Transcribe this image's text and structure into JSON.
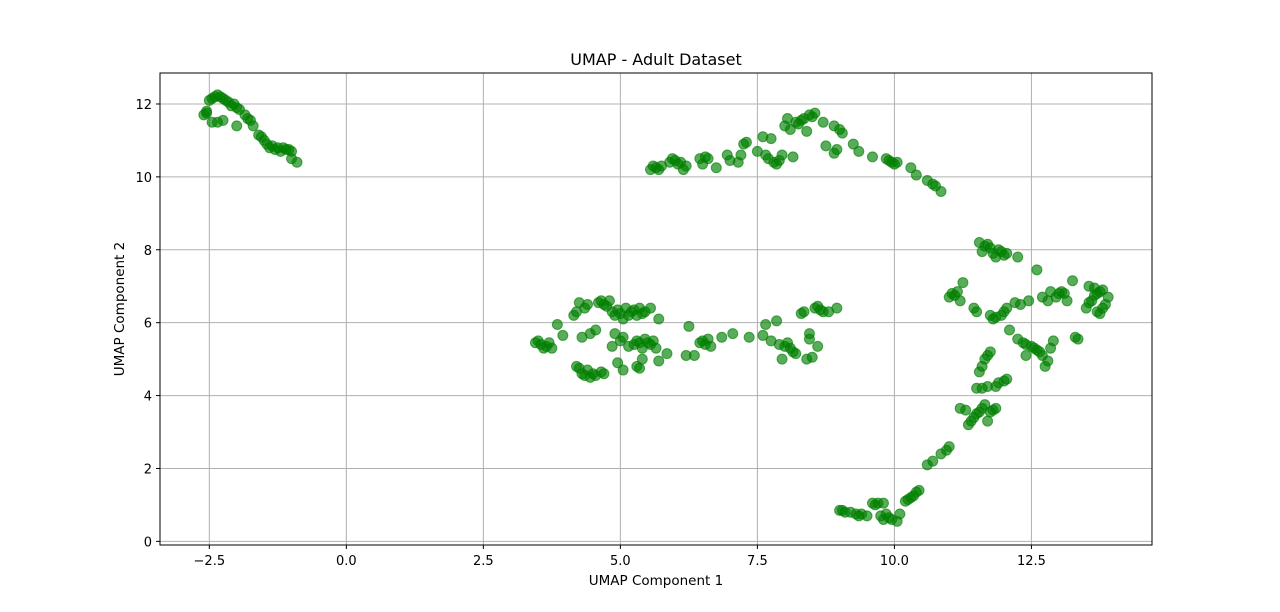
{
  "chart_data": {
    "type": "scatter",
    "title": "UMAP - Adult Dataset",
    "xlabel": "UMAP Component 1",
    "ylabel": "UMAP Component 2",
    "xlim": [
      -3.4,
      14.7
    ],
    "ylim": [
      -0.1,
      12.85
    ],
    "xticks": [
      -2.5,
      0.0,
      2.5,
      5.0,
      7.5,
      10.0,
      12.5
    ],
    "xtick_labels": [
      "−2.5",
      "0.0",
      "2.5",
      "5.0",
      "7.5",
      "10.0",
      "12.5"
    ],
    "yticks": [
      0,
      2,
      4,
      6,
      8,
      10,
      12
    ],
    "ytick_labels": [
      "0",
      "2",
      "4",
      "6",
      "8",
      "10",
      "12"
    ],
    "grid": true,
    "marker_color": "#008000",
    "marker_alpha": 0.65,
    "points": [
      [
        -2.6,
        11.7
      ],
      [
        -2.55,
        11.75
      ],
      [
        -2.5,
        12.1
      ],
      [
        -2.45,
        12.15
      ],
      [
        -2.4,
        12.2
      ],
      [
        -2.35,
        12.25
      ],
      [
        -2.3,
        12.2
      ],
      [
        -2.25,
        12.15
      ],
      [
        -2.2,
        12.1
      ],
      [
        -2.15,
        12.05
      ],
      [
        -2.1,
        11.95
      ],
      [
        -2.05,
        12.0
      ],
      [
        -2.0,
        11.9
      ],
      [
        -1.95,
        11.85
      ],
      [
        -1.85,
        11.7
      ],
      [
        -1.8,
        11.6
      ],
      [
        -1.75,
        11.55
      ],
      [
        -1.7,
        11.4
      ],
      [
        -1.6,
        11.15
      ],
      [
        -1.55,
        11.1
      ],
      [
        -1.5,
        11.0
      ],
      [
        -1.45,
        10.9
      ],
      [
        -1.4,
        10.8
      ],
      [
        -1.35,
        10.85
      ],
      [
        -1.3,
        10.75
      ],
      [
        -1.25,
        10.8
      ],
      [
        -1.2,
        10.7
      ],
      [
        -1.15,
        10.8
      ],
      [
        -1.1,
        10.75
      ],
      [
        -1.05,
        10.75
      ],
      [
        -1.0,
        10.7
      ],
      [
        -1.0,
        10.5
      ],
      [
        -0.9,
        10.4
      ],
      [
        -2.45,
        11.5
      ],
      [
        -2.35,
        11.5
      ],
      [
        -2.25,
        11.55
      ],
      [
        -2.0,
        11.4
      ],
      [
        -2.55,
        11.8
      ],
      [
        5.55,
        10.2
      ],
      [
        5.6,
        10.3
      ],
      [
        5.65,
        10.25
      ],
      [
        5.7,
        10.2
      ],
      [
        5.75,
        10.3
      ],
      [
        5.9,
        10.4
      ],
      [
        5.95,
        10.5
      ],
      [
        6.0,
        10.45
      ],
      [
        6.05,
        10.35
      ],
      [
        6.1,
        10.4
      ],
      [
        6.15,
        10.2
      ],
      [
        6.2,
        10.3
      ],
      [
        6.45,
        10.5
      ],
      [
        6.5,
        10.35
      ],
      [
        6.55,
        10.55
      ],
      [
        6.6,
        10.5
      ],
      [
        6.75,
        10.25
      ],
      [
        6.95,
        10.6
      ],
      [
        7.0,
        10.45
      ],
      [
        7.15,
        10.4
      ],
      [
        7.2,
        10.6
      ],
      [
        7.25,
        10.9
      ],
      [
        7.3,
        10.95
      ],
      [
        7.5,
        10.7
      ],
      [
        7.6,
        11.1
      ],
      [
        7.65,
        10.6
      ],
      [
        7.7,
        10.5
      ],
      [
        7.75,
        11.05
      ],
      [
        7.8,
        10.4
      ],
      [
        7.85,
        10.35
      ],
      [
        7.9,
        10.45
      ],
      [
        7.95,
        10.6
      ],
      [
        8.0,
        11.4
      ],
      [
        8.05,
        11.6
      ],
      [
        8.1,
        11.3
      ],
      [
        8.15,
        10.55
      ],
      [
        8.2,
        11.5
      ],
      [
        8.25,
        11.45
      ],
      [
        8.3,
        11.55
      ],
      [
        8.35,
        11.6
      ],
      [
        8.4,
        11.25
      ],
      [
        8.45,
        11.7
      ],
      [
        8.5,
        11.65
      ],
      [
        8.55,
        11.75
      ],
      [
        8.7,
        11.5
      ],
      [
        8.75,
        10.85
      ],
      [
        8.9,
        11.4
      ],
      [
        8.95,
        10.75
      ],
      [
        9.0,
        11.3
      ],
      [
        9.05,
        11.2
      ],
      [
        9.25,
        10.9
      ],
      [
        9.35,
        10.7
      ],
      [
        9.6,
        10.55
      ],
      [
        9.85,
        10.5
      ],
      [
        9.9,
        10.45
      ],
      [
        9.95,
        10.4
      ],
      [
        10.0,
        10.35
      ],
      [
        10.05,
        10.4
      ],
      [
        10.3,
        10.25
      ],
      [
        10.4,
        10.05
      ],
      [
        10.6,
        9.9
      ],
      [
        10.7,
        9.8
      ],
      [
        10.75,
        9.75
      ],
      [
        10.85,
        9.6
      ],
      [
        8.9,
        10.65
      ],
      [
        3.45,
        5.45
      ],
      [
        3.5,
        5.5
      ],
      [
        3.55,
        5.4
      ],
      [
        3.6,
        5.3
      ],
      [
        3.65,
        5.35
      ],
      [
        3.7,
        5.45
      ],
      [
        3.75,
        5.3
      ],
      [
        3.85,
        5.95
      ],
      [
        3.95,
        5.65
      ],
      [
        4.15,
        6.2
      ],
      [
        4.2,
        6.3
      ],
      [
        4.25,
        6.55
      ],
      [
        4.3,
        5.6
      ],
      [
        4.35,
        6.4
      ],
      [
        4.4,
        6.5
      ],
      [
        4.45,
        5.7
      ],
      [
        4.55,
        5.8
      ],
      [
        4.6,
        6.55
      ],
      [
        4.65,
        6.6
      ],
      [
        4.7,
        6.5
      ],
      [
        4.75,
        6.45
      ],
      [
        4.8,
        6.6
      ],
      [
        4.85,
        6.3
      ],
      [
        4.9,
        6.2
      ],
      [
        4.95,
        6.35
      ],
      [
        5.0,
        6.25
      ],
      [
        5.05,
        6.1
      ],
      [
        5.1,
        6.4
      ],
      [
        5.15,
        6.2
      ],
      [
        5.2,
        6.3
      ],
      [
        5.25,
        6.35
      ],
      [
        5.3,
        6.2
      ],
      [
        5.35,
        6.4
      ],
      [
        5.4,
        6.25
      ],
      [
        5.45,
        6.3
      ],
      [
        5.55,
        6.4
      ],
      [
        5.7,
        6.1
      ],
      [
        5.0,
        5.5
      ],
      [
        5.05,
        5.6
      ],
      [
        5.15,
        5.35
      ],
      [
        5.25,
        5.4
      ],
      [
        5.3,
        5.5
      ],
      [
        5.35,
        5.45
      ],
      [
        5.4,
        5.3
      ],
      [
        5.45,
        5.55
      ],
      [
        5.5,
        5.45
      ],
      [
        5.55,
        5.4
      ],
      [
        5.6,
        5.5
      ],
      [
        5.65,
        5.3
      ],
      [
        4.9,
        5.7
      ],
      [
        4.85,
        5.35
      ],
      [
        4.95,
        4.9
      ],
      [
        5.4,
        5.0
      ],
      [
        5.3,
        4.8
      ],
      [
        5.35,
        4.75
      ],
      [
        5.05,
        4.7
      ],
      [
        5.7,
        4.95
      ],
      [
        5.85,
        5.15
      ],
      [
        4.2,
        4.8
      ],
      [
        4.25,
        4.75
      ],
      [
        4.3,
        4.6
      ],
      [
        4.35,
        4.55
      ],
      [
        4.4,
        4.7
      ],
      [
        4.45,
        4.5
      ],
      [
        4.5,
        4.6
      ],
      [
        4.55,
        4.55
      ],
      [
        4.65,
        4.65
      ],
      [
        4.7,
        4.6
      ],
      [
        6.2,
        5.1
      ],
      [
        6.25,
        5.9
      ],
      [
        6.35,
        5.1
      ],
      [
        6.45,
        5.45
      ],
      [
        6.5,
        5.5
      ],
      [
        6.55,
        5.4
      ],
      [
        6.6,
        5.55
      ],
      [
        6.65,
        5.35
      ],
      [
        6.85,
        5.6
      ],
      [
        7.05,
        5.7
      ],
      [
        7.35,
        5.6
      ],
      [
        7.6,
        5.65
      ],
      [
        7.65,
        5.95
      ],
      [
        7.75,
        5.5
      ],
      [
        7.85,
        6.05
      ],
      [
        7.9,
        5.4
      ],
      [
        7.95,
        5.0
      ],
      [
        8.0,
        5.35
      ],
      [
        8.05,
        5.45
      ],
      [
        8.1,
        5.3
      ],
      [
        8.15,
        5.2
      ],
      [
        8.2,
        5.15
      ],
      [
        8.3,
        6.25
      ],
      [
        8.35,
        6.3
      ],
      [
        8.4,
        5.0
      ],
      [
        8.45,
        5.55
      ],
      [
        8.5,
        5.05
      ],
      [
        8.55,
        6.4
      ],
      [
        8.6,
        6.45
      ],
      [
        8.65,
        6.35
      ],
      [
        8.7,
        6.3
      ],
      [
        8.8,
        6.3
      ],
      [
        8.95,
        6.4
      ],
      [
        8.6,
        5.35
      ],
      [
        8.45,
        5.7
      ],
      [
        9.0,
        0.85
      ],
      [
        9.05,
        0.85
      ],
      [
        9.1,
        0.8
      ],
      [
        9.2,
        0.8
      ],
      [
        9.3,
        0.75
      ],
      [
        9.35,
        0.7
      ],
      [
        9.4,
        0.75
      ],
      [
        9.5,
        0.7
      ],
      [
        9.6,
        1.05
      ],
      [
        9.65,
        1.0
      ],
      [
        9.7,
        1.05
      ],
      [
        9.8,
        1.05
      ],
      [
        9.85,
        0.75
      ],
      [
        9.9,
        0.65
      ],
      [
        9.95,
        0.6
      ],
      [
        10.05,
        0.55
      ],
      [
        10.1,
        0.75
      ],
      [
        10.2,
        1.1
      ],
      [
        10.25,
        1.15
      ],
      [
        10.3,
        1.2
      ],
      [
        10.35,
        1.25
      ],
      [
        10.4,
        1.35
      ],
      [
        10.45,
        1.4
      ],
      [
        10.6,
        2.1
      ],
      [
        10.7,
        2.2
      ],
      [
        10.85,
        2.4
      ],
      [
        10.95,
        2.5
      ],
      [
        11.0,
        2.6
      ],
      [
        9.75,
        0.7
      ],
      [
        9.8,
        0.6
      ],
      [
        11.2,
        3.65
      ],
      [
        11.3,
        3.6
      ],
      [
        11.35,
        3.2
      ],
      [
        11.4,
        3.3
      ],
      [
        11.45,
        3.4
      ],
      [
        11.5,
        3.5
      ],
      [
        11.55,
        3.55
      ],
      [
        11.6,
        3.65
      ],
      [
        11.65,
        3.75
      ],
      [
        11.7,
        3.3
      ],
      [
        11.75,
        3.55
      ],
      [
        11.8,
        3.6
      ],
      [
        11.85,
        3.65
      ],
      [
        11.5,
        4.2
      ],
      [
        11.55,
        4.65
      ],
      [
        11.6,
        4.8
      ],
      [
        11.65,
        5.0
      ],
      [
        11.7,
        5.1
      ],
      [
        11.75,
        5.2
      ],
      [
        11.85,
        4.25
      ],
      [
        11.9,
        4.35
      ],
      [
        12.0,
        4.4
      ],
      [
        12.05,
        4.45
      ],
      [
        11.6,
        4.2
      ],
      [
        11.7,
        4.25
      ],
      [
        11.0,
        6.7
      ],
      [
        11.05,
        6.8
      ],
      [
        11.1,
        6.75
      ],
      [
        11.15,
        6.85
      ],
      [
        11.2,
        6.6
      ],
      [
        11.25,
        7.1
      ],
      [
        11.45,
        6.4
      ],
      [
        11.5,
        6.3
      ],
      [
        11.75,
        6.2
      ],
      [
        11.8,
        6.1
      ],
      [
        11.85,
        6.15
      ],
      [
        11.95,
        6.2
      ],
      [
        12.0,
        6.3
      ],
      [
        12.05,
        6.4
      ],
      [
        12.1,
        5.8
      ],
      [
        12.2,
        6.55
      ],
      [
        12.25,
        5.55
      ],
      [
        12.3,
        6.5
      ],
      [
        12.35,
        5.45
      ],
      [
        12.4,
        5.4
      ],
      [
        12.45,
        6.6
      ],
      [
        12.5,
        5.35
      ],
      [
        12.55,
        5.3
      ],
      [
        12.6,
        5.25
      ],
      [
        12.65,
        5.2
      ],
      [
        12.7,
        5.1
      ],
      [
        12.75,
        4.8
      ],
      [
        12.8,
        4.95
      ],
      [
        12.85,
        5.3
      ],
      [
        12.9,
        5.5
      ],
      [
        12.6,
        7.45
      ],
      [
        12.7,
        6.7
      ],
      [
        12.8,
        6.6
      ],
      [
        12.85,
        6.85
      ],
      [
        12.95,
        6.7
      ],
      [
        13.0,
        6.8
      ],
      [
        13.05,
        6.85
      ],
      [
        13.1,
        6.8
      ],
      [
        13.15,
        6.6
      ],
      [
        13.25,
        7.15
      ],
      [
        13.3,
        5.6
      ],
      [
        13.35,
        5.55
      ],
      [
        13.5,
        6.4
      ],
      [
        13.55,
        6.55
      ],
      [
        13.6,
        6.6
      ],
      [
        13.65,
        6.75
      ],
      [
        13.7,
        6.8
      ],
      [
        13.75,
        6.85
      ],
      [
        13.8,
        6.9
      ],
      [
        13.7,
        6.3
      ],
      [
        13.75,
        6.25
      ],
      [
        13.8,
        6.4
      ],
      [
        13.85,
        6.5
      ],
      [
        13.9,
        6.7
      ],
      [
        13.55,
        7.0
      ],
      [
        13.65,
        6.95
      ],
      [
        12.4,
        5.1
      ],
      [
        11.55,
        8.2
      ],
      [
        11.6,
        7.95
      ],
      [
        11.65,
        8.1
      ],
      [
        11.7,
        8.15
      ],
      [
        11.75,
        8.05
      ],
      [
        11.8,
        7.9
      ],
      [
        11.85,
        7.8
      ],
      [
        11.9,
        8.0
      ],
      [
        11.95,
        7.95
      ],
      [
        12.0,
        7.85
      ],
      [
        12.05,
        7.9
      ],
      [
        12.25,
        7.8
      ]
    ]
  }
}
